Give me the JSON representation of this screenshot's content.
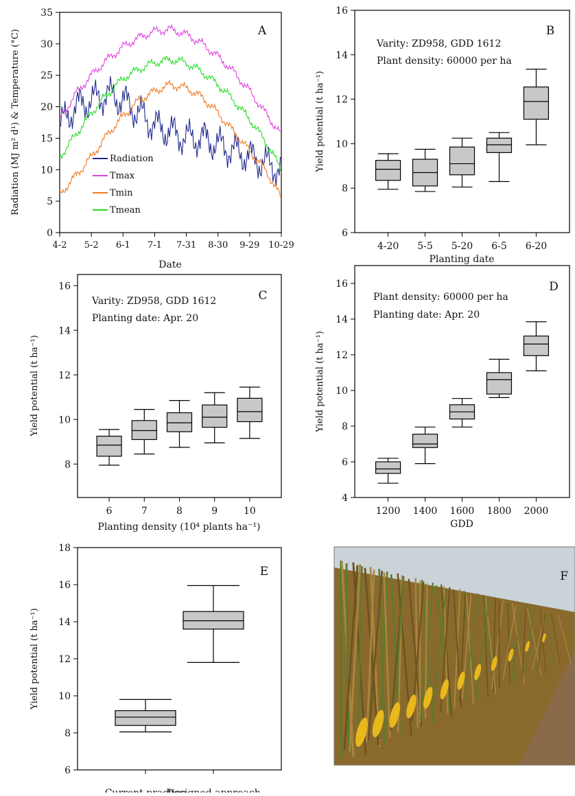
{
  "chart_data": [
    {
      "panel": "A",
      "type": "line",
      "panel_letter": "A",
      "xlabel": "Date",
      "ylabel": "Radiation (MJ m² d¹) & Temperature (°C)",
      "x_ticks": [
        "4-2",
        "5-2",
        "6-1",
        "7-1",
        "7-31",
        "8-30",
        "9-29",
        "10-29"
      ],
      "x_range_days": [
        0,
        210
      ],
      "ylim": [
        0,
        35
      ],
      "y_ticks": [
        0,
        5,
        10,
        15,
        20,
        25,
        30,
        35
      ],
      "series": [
        {
          "name": "Radiation",
          "color": "#1f2a8c",
          "x": [
            0,
            15,
            30,
            45,
            60,
            75,
            90,
            105,
            120,
            135,
            150,
            165,
            180,
            195,
            210
          ],
          "values": [
            17,
            20,
            21,
            22,
            21,
            19,
            17,
            16,
            15,
            15,
            14,
            13,
            12,
            11,
            10
          ]
        },
        {
          "name": "Tmax",
          "color": "#e040e0",
          "x": [
            0,
            15,
            30,
            45,
            60,
            75,
            90,
            105,
            120,
            135,
            150,
            165,
            180,
            195,
            210
          ],
          "values": [
            18,
            22,
            25,
            27.5,
            29.5,
            31,
            32,
            32.3,
            31.5,
            30,
            28,
            25.5,
            22.5,
            19,
            15.5
          ]
        },
        {
          "name": "Tmin",
          "color": "#f07820",
          "x": [
            0,
            15,
            30,
            45,
            60,
            75,
            90,
            105,
            120,
            135,
            150,
            165,
            180,
            195,
            210
          ],
          "values": [
            6,
            9,
            12,
            15.5,
            18.5,
            21,
            22.5,
            23.5,
            23,
            21.5,
            19,
            16,
            13,
            10,
            5.5
          ]
        },
        {
          "name": "Tmean",
          "color": "#22dd22",
          "x": [
            0,
            15,
            30,
            45,
            60,
            75,
            90,
            105,
            120,
            135,
            150,
            165,
            180,
            195,
            210
          ],
          "values": [
            12,
            15.5,
            19,
            22,
            24.5,
            26,
            27,
            27.5,
            27,
            25.5,
            23.5,
            21,
            18,
            14.5,
            10
          ]
        }
      ]
    },
    {
      "panel": "B",
      "type": "box",
      "panel_letter": "B",
      "annotations": [
        "Varity: ZD958, GDD 1612",
        "Plant density: 60000 per ha"
      ],
      "xlabel": "Planting date",
      "ylabel": "Yield potential (t ha⁻¹)",
      "ylim": [
        6,
        16
      ],
      "y_ticks": [
        6,
        8,
        10,
        12,
        14,
        16
      ],
      "categories": [
        "4-20",
        "5-5",
        "5-20",
        "6-5",
        "6-20"
      ],
      "boxes": [
        {
          "min": 7.95,
          "q1": 8.35,
          "median": 8.85,
          "q3": 9.25,
          "max": 9.55
        },
        {
          "min": 7.85,
          "q1": 8.1,
          "median": 8.7,
          "q3": 9.3,
          "max": 9.75
        },
        {
          "min": 8.05,
          "q1": 8.6,
          "median": 9.1,
          "q3": 9.85,
          "max": 10.25
        },
        {
          "min": 8.3,
          "q1": 9.6,
          "median": 9.95,
          "q3": 10.25,
          "max": 10.5
        },
        {
          "min": 9.95,
          "q1": 11.1,
          "median": 11.9,
          "q3": 12.55,
          "max": 13.35
        }
      ]
    },
    {
      "panel": "C",
      "type": "box",
      "panel_letter": "C",
      "annotations": [
        "Varity: ZD958, GDD 1612",
        "Planting date: Apr. 20"
      ],
      "xlabel": "Planting density (10⁴ plants ha⁻¹)",
      "ylabel": "Yield potential (t ha⁻¹)",
      "ylim": [
        6.5,
        16.5
      ],
      "y_ticks": [
        8,
        10,
        12,
        14,
        16
      ],
      "categories": [
        "6",
        "7",
        "8",
        "9",
        "10"
      ],
      "boxes": [
        {
          "min": 7.95,
          "q1": 8.35,
          "median": 8.85,
          "q3": 9.25,
          "max": 9.55
        },
        {
          "min": 8.45,
          "q1": 9.1,
          "median": 9.5,
          "q3": 9.95,
          "max": 10.45
        },
        {
          "min": 8.75,
          "q1": 9.45,
          "median": 9.85,
          "q3": 10.3,
          "max": 10.85
        },
        {
          "min": 8.95,
          "q1": 9.65,
          "median": 10.1,
          "q3": 10.65,
          "max": 11.2
        },
        {
          "min": 9.15,
          "q1": 9.9,
          "median": 10.35,
          "q3": 10.95,
          "max": 11.45
        }
      ]
    },
    {
      "panel": "D",
      "type": "box",
      "panel_letter": "D",
      "annotations": [
        "Plant density: 60000 per ha",
        "Planting date: Apr. 20"
      ],
      "xlabel": "GDD",
      "ylabel": "Yield potential (t ha⁻¹)",
      "ylim": [
        4,
        17
      ],
      "y_ticks": [
        4,
        6,
        8,
        10,
        12,
        14,
        16
      ],
      "categories": [
        "1200",
        "1400",
        "1600",
        "1800",
        "2000"
      ],
      "boxes": [
        {
          "min": 4.8,
          "q1": 5.35,
          "median": 5.6,
          "q3": 6.0,
          "max": 6.2
        },
        {
          "min": 5.9,
          "q1": 6.8,
          "median": 7.0,
          "q3": 7.55,
          "max": 7.95
        },
        {
          "min": 7.95,
          "q1": 8.4,
          "median": 8.8,
          "q3": 9.2,
          "max": 9.55
        },
        {
          "min": 9.6,
          "q1": 9.8,
          "median": 10.6,
          "q3": 11.0,
          "max": 11.75
        },
        {
          "min": 11.1,
          "q1": 11.95,
          "median": 12.6,
          "q3": 13.05,
          "max": 13.85
        }
      ]
    },
    {
      "panel": "E",
      "type": "box",
      "panel_letter": "E",
      "xlabel": "",
      "ylabel": "Yield potential (t ha⁻¹)",
      "ylim": [
        6,
        18
      ],
      "y_ticks": [
        6,
        8,
        10,
        12,
        14,
        16,
        18
      ],
      "categories": [
        "Current practice",
        "Designed approach"
      ],
      "boxes": [
        {
          "min": 8.05,
          "q1": 8.4,
          "median": 8.85,
          "q3": 9.2,
          "max": 9.8
        },
        {
          "min": 11.8,
          "q1": 13.6,
          "median": 14.05,
          "q3": 14.55,
          "max": 15.95
        }
      ]
    }
  ],
  "photo": {
    "panel_letter": "F",
    "colors": {
      "sky": "#c9d3d8",
      "leaves": "#8a6a2c",
      "green": "#5d7a2e",
      "cob": "#e8b81c",
      "soil": "#8b6a4a"
    }
  }
}
